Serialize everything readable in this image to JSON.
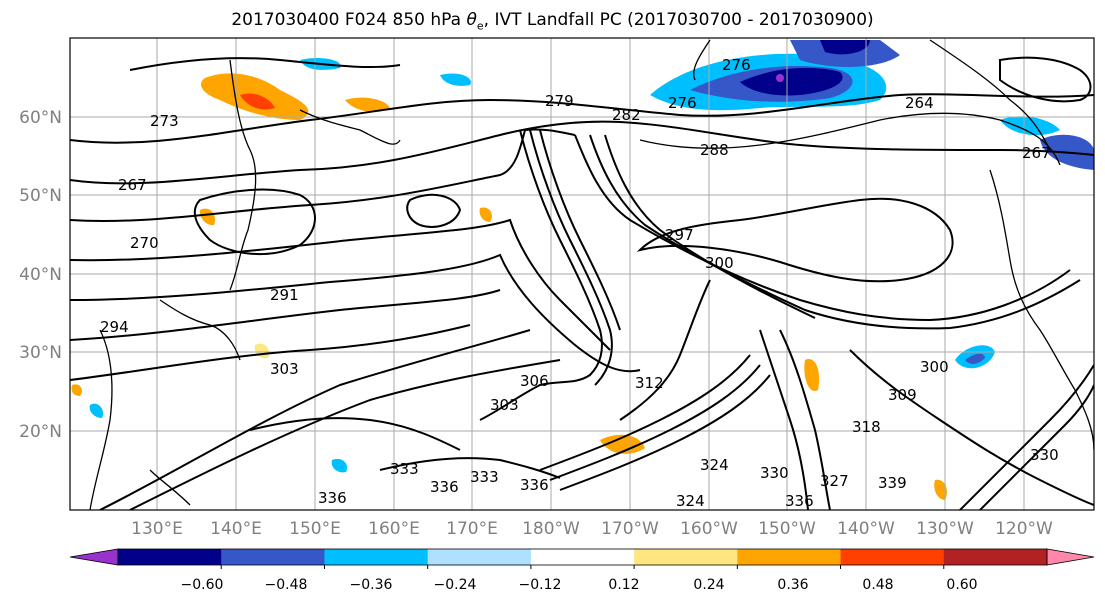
{
  "figure": {
    "title_prefix": "2017030400 F024 850 hPa ",
    "title_symbol": "θ",
    "title_sub": "e",
    "title_suffix": ", IVT Landfall PC (2017030700 - 2017030900)"
  },
  "lat_labels": [
    "60°N",
    "50°N",
    "40°N",
    "30°N",
    "20°N"
  ],
  "lon_labels": [
    "130°E",
    "140°E",
    "150°E",
    "160°E",
    "170°E",
    "180°W",
    "170°W",
    "160°W",
    "150°W",
    "140°W",
    "130°W",
    "120°W"
  ],
  "colorbar": {
    "colors": [
      "#9932cc",
      "#00008b",
      "#3657c8",
      "#00bfff",
      "#b0e0ff",
      "#ffffff",
      "#ffe680",
      "#ffa500",
      "#ff4000",
      "#b22222",
      "#ff88aa"
    ],
    "tick_labels": [
      "−0.60",
      "−0.48",
      "−0.36",
      "−0.24",
      "−0.12",
      "0.12",
      "0.24",
      "0.36",
      "0.48",
      "0.60"
    ]
  },
  "contour_labels": [
    "273",
    "279",
    "282",
    "276",
    "276",
    "264",
    "267",
    "267",
    "270",
    "291",
    "294",
    "303",
    "303",
    "306",
    "312",
    "297",
    "300",
    "300",
    "309",
    "318",
    "288",
    "324",
    "327",
    "330",
    "333",
    "336",
    "336",
    "336",
    "339",
    "324",
    "330",
    "336",
    "333"
  ]
}
